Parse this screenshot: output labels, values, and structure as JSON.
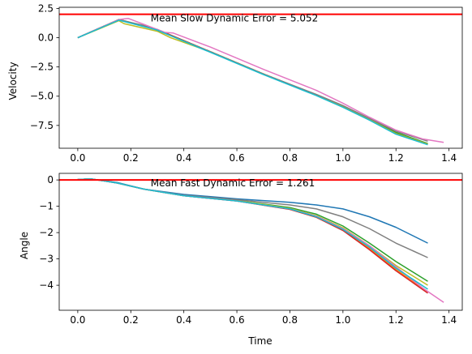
{
  "chart_data": [
    {
      "type": "line",
      "xlabel": "",
      "ylabel": "Velocity",
      "xlim": [
        -0.07,
        1.45
      ],
      "ylim": [
        -9.45,
        2.6
      ],
      "xticks": [
        0.0,
        0.2,
        0.4,
        0.6,
        0.8,
        1.0,
        1.2,
        1.4
      ],
      "xtick_labels": [
        "0.0",
        "0.2",
        "0.4",
        "0.6",
        "0.8",
        "1.0",
        "1.2",
        "1.4"
      ],
      "yticks": [
        2.5,
        0.0,
        -2.5,
        -5.0,
        -7.5
      ],
      "ytick_labels": [
        "2.5",
        "0.0",
        "−2.5",
        "−5.0",
        "−7.5"
      ],
      "reference_line": {
        "y": 2.0,
        "color": "#ff0000"
      },
      "annotation": {
        "text": "Mean Slow Dynamic Error = 5.052",
        "x": 0.275,
        "y": 1.65
      },
      "grid": false,
      "series": [
        {
          "color": "#1f77b4",
          "x": [
            0,
            0.155,
            0.3,
            0.5,
            0.7,
            0.9,
            1.0,
            1.1,
            1.2,
            1.32
          ],
          "y": [
            0,
            1.55,
            0.7,
            -1.2,
            -3.1,
            -4.9,
            -5.9,
            -7.0,
            -8.2,
            -9.1
          ]
        },
        {
          "color": "#ff7f0e",
          "x": [
            0,
            0.155,
            0.3,
            0.5,
            0.7,
            0.9,
            1.0,
            1.1,
            1.2,
            1.32
          ],
          "y": [
            0,
            1.55,
            0.7,
            -1.2,
            -3.1,
            -4.9,
            -5.9,
            -7.0,
            -8.2,
            -9.1
          ]
        },
        {
          "color": "#2ca02c",
          "x": [
            0,
            0.155,
            0.3,
            0.5,
            0.7,
            0.9,
            1.0,
            1.1,
            1.2,
            1.32
          ],
          "y": [
            0,
            1.55,
            0.7,
            -1.2,
            -3.1,
            -4.9,
            -5.85,
            -6.95,
            -8.1,
            -9.05
          ]
        },
        {
          "color": "#d62728",
          "x": [
            0,
            0.155,
            0.3,
            0.5,
            0.7,
            0.9,
            1.0,
            1.1,
            1.2,
            1.32
          ],
          "y": [
            0,
            1.55,
            0.7,
            -1.2,
            -3.1,
            -4.9,
            -5.9,
            -7.0,
            -8.2,
            -9.1
          ]
        },
        {
          "color": "#bcbd22",
          "x": [
            0,
            0.155,
            0.175,
            0.3,
            0.35,
            0.5,
            0.7,
            0.9,
            1.0,
            1.1,
            1.2,
            1.32
          ],
          "y": [
            0,
            1.45,
            1.2,
            0.55,
            0.0,
            -1.2,
            -3.1,
            -4.9,
            -5.9,
            -7.0,
            -8.2,
            -9.1
          ]
        },
        {
          "color": "#7f7f7f",
          "x": [
            0,
            0.155,
            0.2,
            0.26,
            0.5,
            0.7,
            0.9,
            1.0,
            1.1,
            1.2,
            1.32
          ],
          "y": [
            0,
            1.55,
            1.3,
            1.0,
            -1.2,
            -3.1,
            -4.85,
            -5.8,
            -6.9,
            -8.0,
            -8.85
          ]
        },
        {
          "color": "#e377c2",
          "x": [
            0,
            0.155,
            0.19,
            0.33,
            0.36,
            0.5,
            0.7,
            0.9,
            1.0,
            1.1,
            1.2,
            1.3,
            1.38
          ],
          "y": [
            0,
            1.55,
            1.65,
            0.45,
            0.4,
            -0.8,
            -2.7,
            -4.5,
            -5.6,
            -6.8,
            -7.9,
            -8.65,
            -8.95
          ]
        },
        {
          "color": "#17becf",
          "x": [
            0,
            0.155,
            0.3,
            0.5,
            0.7,
            0.9,
            1.0,
            1.1,
            1.2,
            1.32
          ],
          "y": [
            0,
            1.5,
            0.65,
            -1.25,
            -3.15,
            -4.95,
            -5.95,
            -7.05,
            -8.25,
            -9.15
          ]
        }
      ]
    },
    {
      "type": "line",
      "xlabel": "Time",
      "ylabel": "Angle",
      "xlim": [
        -0.07,
        1.45
      ],
      "ylim": [
        -4.95,
        0.25
      ],
      "xticks": [
        0.0,
        0.2,
        0.4,
        0.6,
        0.8,
        1.0,
        1.2,
        1.4
      ],
      "xtick_labels": [
        "0.0",
        "0.2",
        "0.4",
        "0.6",
        "0.8",
        "1.0",
        "1.2",
        "1.4"
      ],
      "yticks": [
        0,
        -1,
        -2,
        -3,
        -4
      ],
      "ytick_labels": [
        "0",
        "−1",
        "−2",
        "−3",
        "−4"
      ],
      "reference_line": {
        "y": 0.0,
        "color": "#ff0000"
      },
      "annotation": {
        "text": "Mean Fast Dynamic Error = 1.261",
        "x": 0.275,
        "y": -0.12
      },
      "grid": false,
      "series": [
        {
          "color": "#1f77b4",
          "x": [
            0,
            0.05,
            0.15,
            0.25,
            0.4,
            0.6,
            0.8,
            0.9,
            1.0,
            1.1,
            1.2,
            1.32
          ],
          "y": [
            0.02,
            0.04,
            -0.1,
            -0.35,
            -0.55,
            -0.72,
            -0.85,
            -0.95,
            -1.1,
            -1.4,
            -1.8,
            -2.4
          ]
        },
        {
          "color": "#ff7f0e",
          "x": [
            0,
            0.05,
            0.15,
            0.25,
            0.4,
            0.6,
            0.8,
            0.9,
            1.0,
            1.1,
            1.2,
            1.32
          ],
          "y": [
            0.02,
            0.04,
            -0.12,
            -0.35,
            -0.6,
            -0.8,
            -1.1,
            -1.4,
            -1.9,
            -2.6,
            -3.4,
            -4.25
          ]
        },
        {
          "color": "#2ca02c",
          "x": [
            0,
            0.05,
            0.15,
            0.25,
            0.4,
            0.6,
            0.8,
            0.9,
            1.0,
            1.1,
            1.2,
            1.32
          ],
          "y": [
            0.02,
            0.04,
            -0.12,
            -0.35,
            -0.6,
            -0.78,
            -1.05,
            -1.3,
            -1.75,
            -2.4,
            -3.1,
            -3.85
          ]
        },
        {
          "color": "#d62728",
          "x": [
            0,
            0.05,
            0.15,
            0.25,
            0.4,
            0.6,
            0.8,
            0.9,
            1.0,
            1.1,
            1.2,
            1.32
          ],
          "y": [
            0.02,
            0.04,
            -0.12,
            -0.35,
            -0.6,
            -0.8,
            -1.12,
            -1.42,
            -1.92,
            -2.65,
            -3.45,
            -4.3
          ]
        },
        {
          "color": "#bcbd22",
          "x": [
            0,
            0.05,
            0.15,
            0.25,
            0.4,
            0.6,
            0.8,
            0.9,
            1.0,
            1.1,
            1.2,
            1.32
          ],
          "y": [
            0.02,
            0.04,
            -0.12,
            -0.35,
            -0.6,
            -0.78,
            -1.08,
            -1.36,
            -1.82,
            -2.5,
            -3.25,
            -4.0
          ]
        },
        {
          "color": "#7f7f7f",
          "x": [
            0,
            0.05,
            0.15,
            0.25,
            0.4,
            0.6,
            0.8,
            0.9,
            1.0,
            1.1,
            1.2,
            1.32
          ],
          "y": [
            0.02,
            0.04,
            -0.12,
            -0.35,
            -0.58,
            -0.75,
            -0.95,
            -1.1,
            -1.4,
            -1.85,
            -2.4,
            -2.95
          ]
        },
        {
          "color": "#e377c2",
          "x": [
            0,
            0.05,
            0.15,
            0.25,
            0.4,
            0.6,
            0.8,
            0.9,
            1.0,
            1.1,
            1.2,
            1.3,
            1.38
          ],
          "y": [
            0.02,
            0.04,
            -0.12,
            -0.35,
            -0.6,
            -0.8,
            -1.1,
            -1.38,
            -1.85,
            -2.5,
            -3.3,
            -4.1,
            -4.65
          ]
        },
        {
          "color": "#17becf",
          "x": [
            0,
            0.05,
            0.15,
            0.25,
            0.4,
            0.6,
            0.8,
            0.9,
            1.0,
            1.1,
            1.2,
            1.32
          ],
          "y": [
            0.02,
            0.04,
            -0.12,
            -0.35,
            -0.6,
            -0.8,
            -1.1,
            -1.4,
            -1.88,
            -2.55,
            -3.35,
            -4.15
          ]
        }
      ]
    }
  ]
}
